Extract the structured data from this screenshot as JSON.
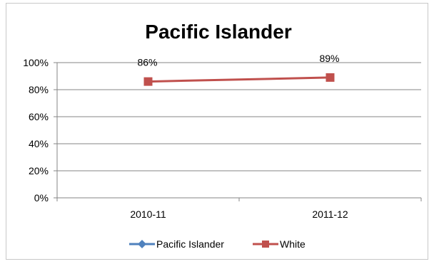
{
  "chart_data": {
    "type": "line",
    "title": "Pacific Islander",
    "categories": [
      "2010-11",
      "2011-12"
    ],
    "ylim": [
      0,
      100
    ],
    "yticks": [
      0,
      20,
      40,
      60,
      80,
      100
    ],
    "ytick_labels": [
      "0%",
      "20%",
      "40%",
      "60%",
      "80%",
      "100%"
    ],
    "grid": true,
    "legend_position": "bottom",
    "series": [
      {
        "name": "Pacific Islander",
        "values": [
          null,
          null
        ],
        "color": "#4F81BD",
        "marker": "diamond",
        "data_labels": []
      },
      {
        "name": "White",
        "values": [
          86,
          89
        ],
        "color": "#C0504D",
        "marker": "square",
        "data_labels": [
          "86%",
          "89%"
        ]
      }
    ]
  }
}
